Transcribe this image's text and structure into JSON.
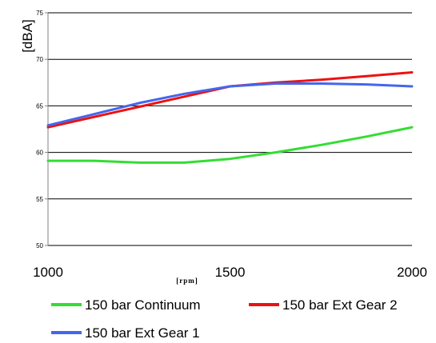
{
  "chart_data": {
    "type": "line",
    "title": "",
    "xlabel": "[rpm]",
    "ylabel": "[dBA]",
    "xlim": [
      1000,
      2000
    ],
    "ylim": [
      50,
      75
    ],
    "x_ticks": [
      "1000",
      "1500",
      "2000"
    ],
    "y_ticks": [
      "50",
      "55",
      "60",
      "65",
      "70",
      "75"
    ],
    "grid": "horizontal",
    "legend_position": "bottom",
    "series": [
      {
        "name": "150 bar Continuum",
        "color": "#33dd33",
        "x": [
          1000,
          1125,
          1250,
          1375,
          1500,
          1625,
          1750,
          1875,
          2000
        ],
        "y": [
          59.1,
          59.1,
          58.9,
          58.9,
          59.3,
          60.0,
          60.8,
          61.7,
          62.7
        ]
      },
      {
        "name": "150 bar Ext Gear 2",
        "color": "#ee1111",
        "x": [
          1000,
          1125,
          1250,
          1375,
          1500,
          1625,
          1750,
          1875,
          2000
        ],
        "y": [
          62.7,
          63.8,
          64.9,
          66.0,
          67.1,
          67.5,
          67.8,
          68.2,
          68.6
        ]
      },
      {
        "name": "150 bar Ext Gear 1",
        "color": "#4466ee",
        "x": [
          1000,
          1125,
          1250,
          1375,
          1500,
          1625,
          1750,
          1875,
          2000
        ],
        "y": [
          62.9,
          64.1,
          65.3,
          66.3,
          67.1,
          67.4,
          67.4,
          67.3,
          67.1
        ]
      }
    ]
  }
}
